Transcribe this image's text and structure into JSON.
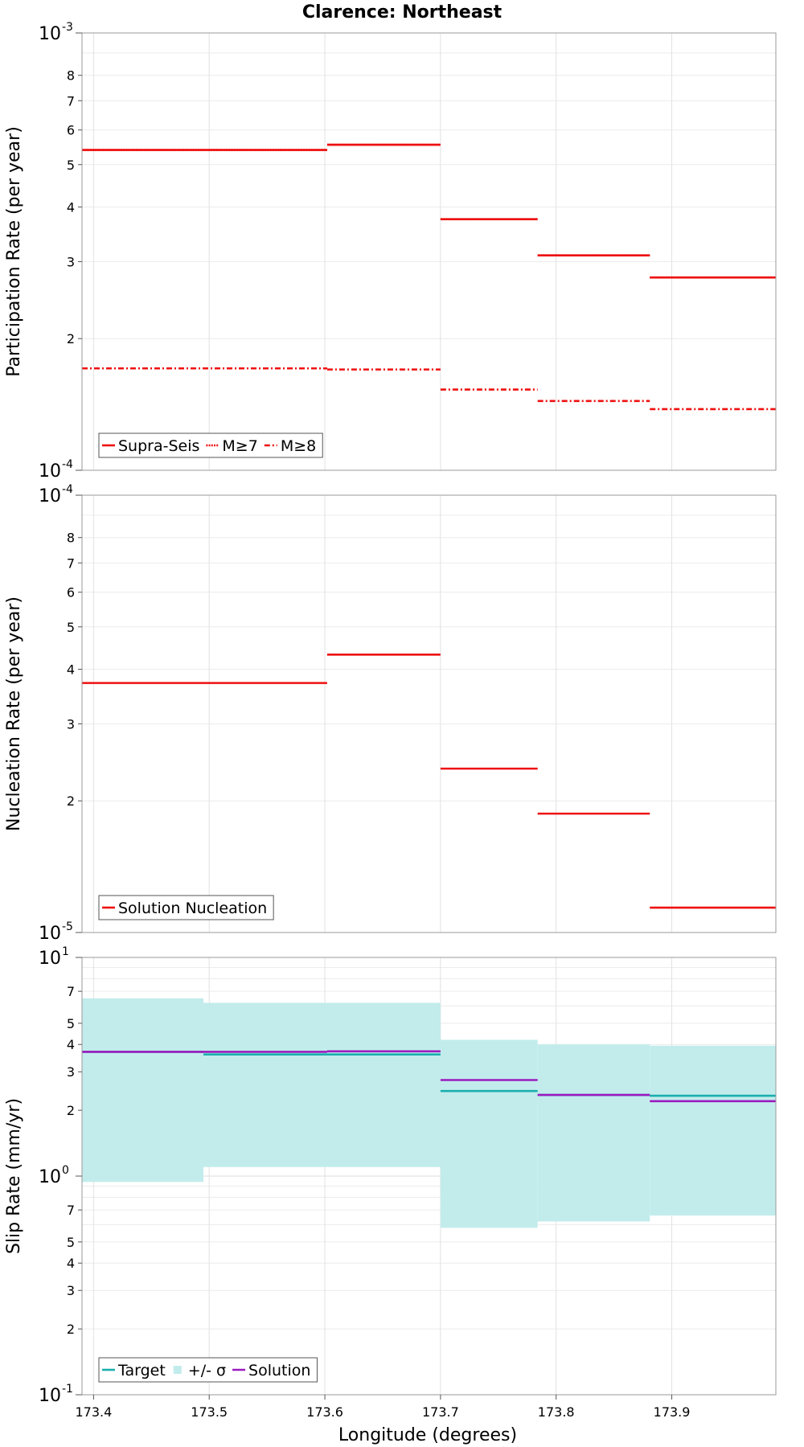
{
  "chart_data": {
    "title": "Clarence: Northeast",
    "xlabel": "Longitude (degrees)",
    "xlim": [
      173.39,
      173.99
    ],
    "xticks": [
      "173.4",
      "173.5",
      "173.6",
      "173.7",
      "173.8",
      "173.9"
    ],
    "colors": {
      "red": "#ee1111",
      "target": "#1aaeae",
      "band": "#c2ecec",
      "solution": "#9b1bbf"
    },
    "panels": [
      {
        "type": "line",
        "ylabel": "Participation Rate (per year)",
        "yscale": "log",
        "ylim": [
          0.0001,
          0.001
        ],
        "decade_labels": [
          {
            "value": 0.001,
            "base": "10",
            "exp": "-3"
          },
          {
            "value": 0.0001,
            "base": "10",
            "exp": "-4"
          }
        ],
        "minor_labels": [
          {
            "value": 0.0008,
            "label": "8"
          },
          {
            "value": 0.0007,
            "label": "7"
          },
          {
            "value": 0.0006,
            "label": "6"
          },
          {
            "value": 0.0005,
            "label": "5"
          },
          {
            "value": 0.0004,
            "label": "4"
          },
          {
            "value": 0.0003,
            "label": "3"
          },
          {
            "value": 0.0002,
            "label": "2"
          }
        ],
        "legend": [
          "Supra-Seis",
          "M≥7",
          "M≥8"
        ],
        "legend_position": "bottom-left",
        "series": [
          {
            "name": "Supra-Seis",
            "style": "solid",
            "color": "red",
            "segments": [
              [
                173.39,
                173.602,
                0.00054
              ],
              [
                173.602,
                173.7,
                0.000555
              ],
              [
                173.7,
                173.784,
                0.000375
              ],
              [
                173.784,
                173.881,
                0.00031
              ],
              [
                173.881,
                173.99,
                0.000276
              ]
            ]
          },
          {
            "name": "M≥7",
            "style": "dotted",
            "color": "red",
            "segments": [
              [
                173.39,
                173.602,
                0.00054
              ],
              [
                173.602,
                173.7,
                0.000555
              ],
              [
                173.7,
                173.784,
                0.000375
              ],
              [
                173.784,
                173.881,
                0.00031
              ],
              [
                173.881,
                173.99,
                0.000276
              ]
            ]
          },
          {
            "name": "M≥8",
            "style": "dashdot",
            "color": "red",
            "segments": [
              [
                173.39,
                173.602,
                0.000171
              ],
              [
                173.602,
                173.7,
                0.00017
              ],
              [
                173.7,
                173.784,
                0.000153
              ],
              [
                173.784,
                173.881,
                0.000144
              ],
              [
                173.881,
                173.99,
                0.000138
              ]
            ]
          }
        ]
      },
      {
        "type": "line",
        "ylabel": "Nucleation Rate (per year)",
        "yscale": "log",
        "ylim": [
          1e-05,
          0.0001
        ],
        "decade_labels": [
          {
            "value": 0.0001,
            "base": "10",
            "exp": "-4"
          },
          {
            "value": 1e-05,
            "base": "10",
            "exp": "-5"
          }
        ],
        "minor_labels": [
          {
            "value": 8e-05,
            "label": "8"
          },
          {
            "value": 7e-05,
            "label": "7"
          },
          {
            "value": 6e-05,
            "label": "6"
          },
          {
            "value": 5e-05,
            "label": "5"
          },
          {
            "value": 4e-05,
            "label": "4"
          },
          {
            "value": 3e-05,
            "label": "3"
          },
          {
            "value": 2e-05,
            "label": "2"
          }
        ],
        "legend": [
          "Solution Nucleation"
        ],
        "legend_position": "bottom-left",
        "series": [
          {
            "name": "Solution Nucleation",
            "style": "solid",
            "color": "red",
            "segments": [
              [
                173.39,
                173.602,
                3.72e-05
              ],
              [
                173.602,
                173.7,
                4.32e-05
              ],
              [
                173.7,
                173.784,
                2.37e-05
              ],
              [
                173.784,
                173.881,
                1.87e-05
              ],
              [
                173.881,
                173.99,
                1.14e-05
              ]
            ]
          }
        ]
      },
      {
        "type": "line",
        "ylabel": "Slip Rate (mm/yr)",
        "yscale": "log",
        "ylim": [
          0.1,
          10
        ],
        "decade_labels": [
          {
            "value": 10,
            "base": "10",
            "exp": "1"
          },
          {
            "value": 1,
            "base": "10",
            "exp": "0"
          },
          {
            "value": 0.1,
            "base": "10",
            "exp": "-1"
          }
        ],
        "minor_labels": [
          {
            "value": 7,
            "label": "7"
          },
          {
            "value": 5,
            "label": "5"
          },
          {
            "value": 4,
            "label": "4"
          },
          {
            "value": 3,
            "label": "3"
          },
          {
            "value": 2,
            "label": "2"
          },
          {
            "value": 0.7,
            "label": "7"
          },
          {
            "value": 0.5,
            "label": "5"
          },
          {
            "value": 0.4,
            "label": "4"
          },
          {
            "value": 0.3,
            "label": "3"
          },
          {
            "value": 0.2,
            "label": "2"
          }
        ],
        "legend": [
          "Target",
          "+/- σ",
          "Solution"
        ],
        "legend_position": "bottom-left",
        "band": {
          "name": "+/- σ",
          "color": "band",
          "segments": [
            [
              173.39,
              173.495,
              0.94,
              6.5
            ],
            [
              173.495,
              173.7,
              1.1,
              6.2
            ],
            [
              173.7,
              173.784,
              0.58,
              4.2
            ],
            [
              173.784,
              173.881,
              0.62,
              4.0
            ],
            [
              173.881,
              173.99,
              0.66,
              3.95
            ]
          ]
        },
        "series": [
          {
            "name": "Target",
            "style": "solid",
            "color": "target",
            "segments": [
              [
                173.39,
                173.495,
                3.7
              ],
              [
                173.495,
                173.7,
                3.6
              ],
              [
                173.7,
                173.784,
                2.45
              ],
              [
                173.784,
                173.881,
                2.35
              ],
              [
                173.881,
                173.99,
                2.33
              ]
            ]
          },
          {
            "name": "Solution",
            "style": "solid",
            "color": "solution",
            "segments": [
              [
                173.39,
                173.602,
                3.7
              ],
              [
                173.602,
                173.7,
                3.72
              ],
              [
                173.7,
                173.784,
                2.75
              ],
              [
                173.784,
                173.881,
                2.35
              ],
              [
                173.881,
                173.99,
                2.2
              ]
            ]
          }
        ]
      }
    ]
  }
}
